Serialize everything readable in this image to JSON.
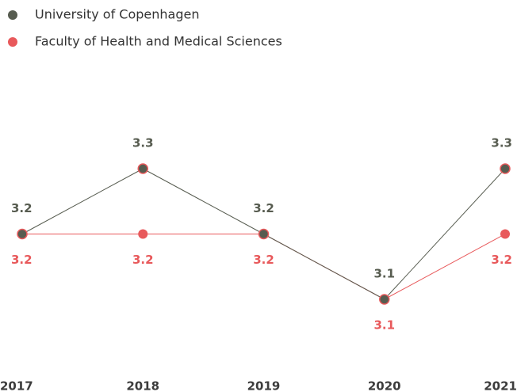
{
  "chart_data": {
    "type": "line",
    "categories": [
      "2017",
      "2018",
      "2019",
      "2020",
      "2021"
    ],
    "series": [
      {
        "name": "University of Copenhagen",
        "color": "#575c50",
        "values": [
          3.2,
          3.3,
          3.2,
          3.1,
          3.3
        ]
      },
      {
        "name": "Faculty of Health and Medical Sciences",
        "color": "#e8595b",
        "values": [
          3.2,
          3.2,
          3.2,
          3.1,
          3.2
        ]
      }
    ],
    "legend": "top-left",
    "grid": false
  }
}
